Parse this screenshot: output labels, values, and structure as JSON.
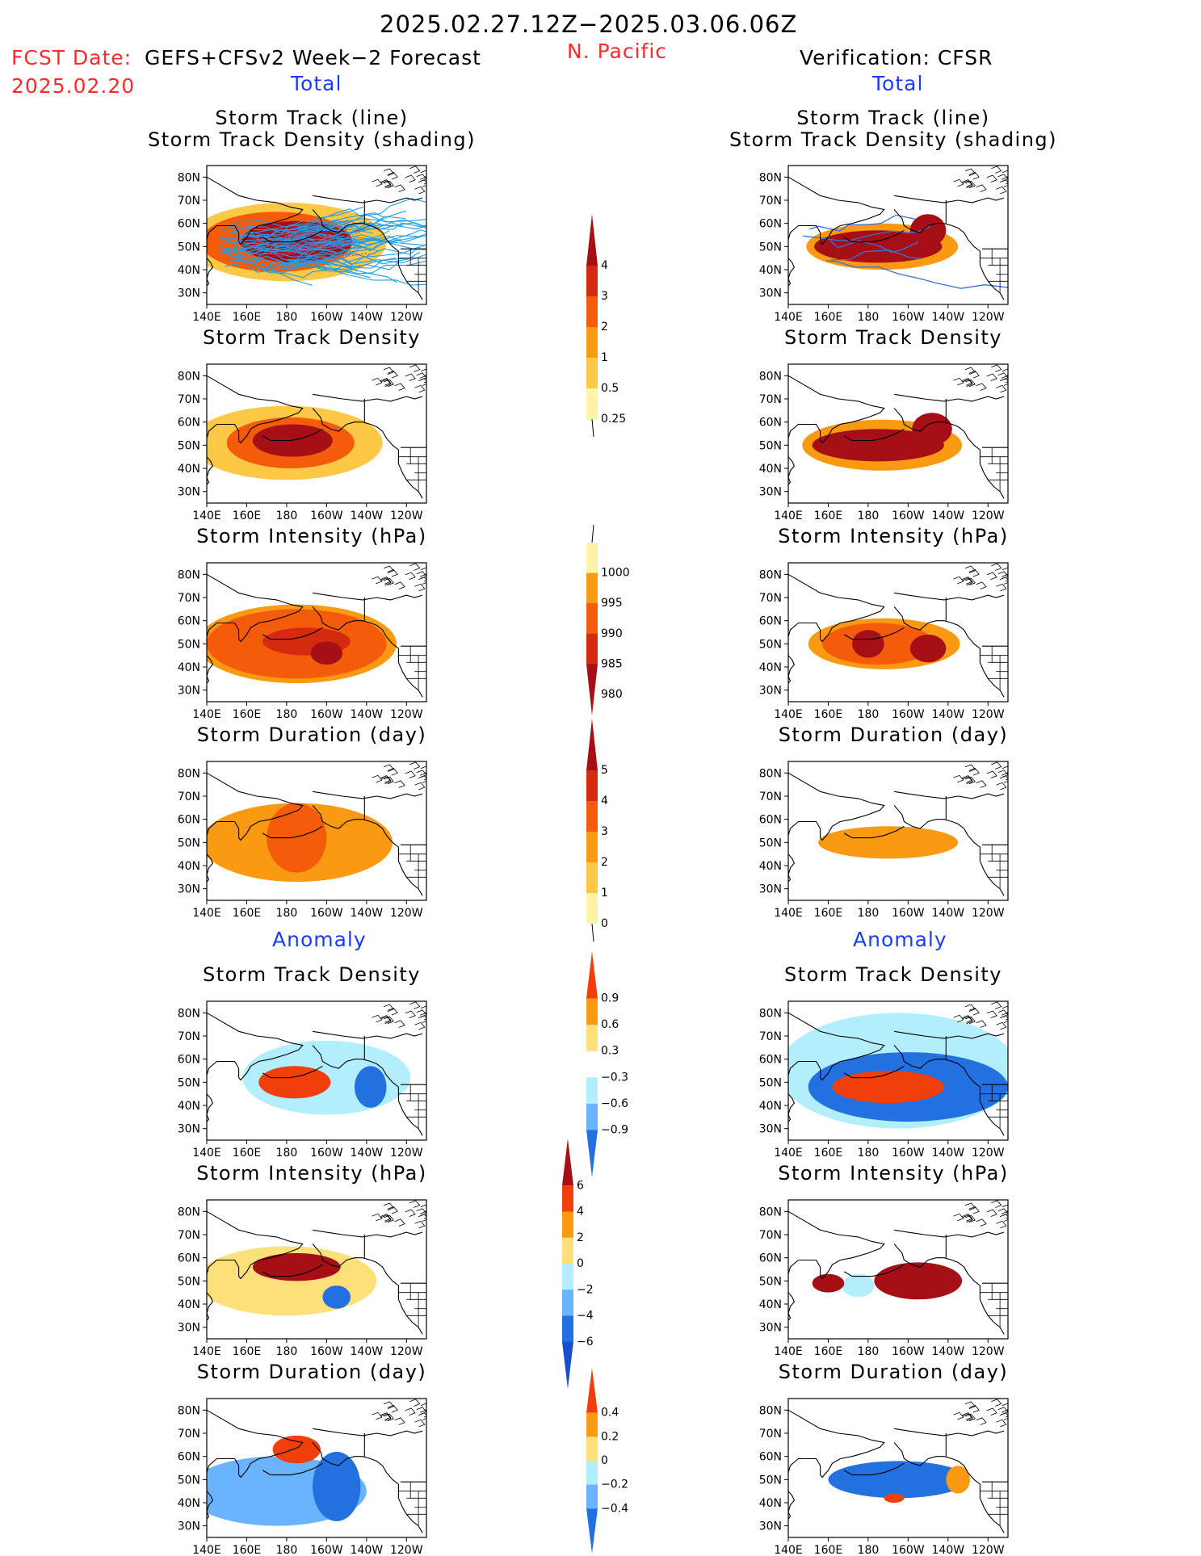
{
  "header": {
    "period": "2025.02.27.12Z−2025.03.06.06Z",
    "region": "N. Pacific",
    "fcst_prefix": "FCST Date:",
    "fcst_model": "GEFS+CFSv2 Week−2 Forecast",
    "fcst_date": "2025.02.20",
    "verification": "Verification: CFSR",
    "total_label": "Total",
    "anomaly_label": "Anomaly"
  },
  "axes": {
    "x_ticks": [
      "140E",
      "160E",
      "180",
      "160W",
      "140W",
      "120W"
    ],
    "y_ticks": [
      "80N",
      "70N",
      "60N",
      "50N",
      "40N",
      "30N"
    ],
    "lon_range": [
      140,
      250
    ],
    "lat_range": [
      25,
      85
    ]
  },
  "panel_titles": {
    "track_line_1": "Storm Track (line)",
    "track_line_2": "Storm Track Density (shading)",
    "density": "Storm Track Density",
    "intensity": "Storm Intensity (hPa)",
    "duration": "Storm Duration (day)"
  },
  "colorbars": {
    "density_total": {
      "labels": [
        "4",
        "3",
        "2",
        "1",
        "0.5",
        "0.25"
      ],
      "colors": [
        "#a50f15",
        "#d42a0f",
        "#f45b0a",
        "#fa9a12",
        "#fcc845",
        "#fff3a8"
      ],
      "open_bottom": true
    },
    "intensity_total": {
      "labels": [
        "1000",
        "995",
        "990",
        "985",
        "980"
      ],
      "colors": [
        "#fff3a8",
        "#fa9a12",
        "#f45b0a",
        "#d42a0f",
        "#a50f15"
      ],
      "open_top": true
    },
    "duration_total": {
      "labels": [
        "5",
        "4",
        "3",
        "2",
        "1",
        "0"
      ],
      "colors": [
        "#a50f15",
        "#d42a0f",
        "#f45b0a",
        "#fa9a12",
        "#fcc845",
        "#fff3a8"
      ],
      "open_bottom": true
    },
    "density_anom": {
      "labels": [
        "0.9",
        "0.6",
        "0.3",
        "−0.3",
        "−0.6",
        "−0.9"
      ],
      "colors": [
        "#f03f0a",
        "#fa9a12",
        "#fde07a",
        "#ffffff",
        "#b3eefc",
        "#6ab4ff",
        "#2370e0"
      ]
    },
    "intensity_anom": {
      "labels": [
        "6",
        "4",
        "2",
        "0",
        "−2",
        "−4",
        "−6"
      ],
      "colors": [
        "#a50f15",
        "#f03f0a",
        "#fa9a12",
        "#fde07a",
        "#b3eefc",
        "#6ab4ff",
        "#2370e0",
        "#1650c8"
      ]
    },
    "duration_anom": {
      "labels": [
        "0.4",
        "0.2",
        "0",
        "−0.2",
        "−0.4"
      ],
      "colors": [
        "#f03f0a",
        "#fa9a12",
        "#fde07a",
        "#b3eefc",
        "#6ab4ff",
        "#2370e0"
      ]
    }
  },
  "chart_data": [
    {
      "type": "heatmap",
      "panel": "forecast-track-total",
      "title": "Storm Track (line) Storm Track Density (shading)",
      "units": "density",
      "blobs": [
        {
          "lon": 185,
          "lat": 52,
          "rx": 28,
          "ry": 9,
          "value": 4
        },
        {
          "lon": 175,
          "lat": 52,
          "rx": 38,
          "ry": 13,
          "value": 2
        },
        {
          "lon": 180,
          "lat": 52,
          "rx": 50,
          "ry": 17,
          "value": 0.5
        }
      ],
      "tracks": "many"
    },
    {
      "type": "heatmap",
      "panel": "verification-track-total",
      "title": "Storm Track (line) Storm Track Density (shading)",
      "units": "density",
      "blobs": [
        {
          "lon": 185,
          "lat": 50,
          "rx": 32,
          "ry": 7,
          "value": 4
        },
        {
          "lon": 210,
          "lat": 57,
          "rx": 9,
          "ry": 7,
          "value": 4
        },
        {
          "lon": 187,
          "lat": 50,
          "rx": 38,
          "ry": 10,
          "value": 1
        }
      ],
      "tracks": "few"
    },
    {
      "type": "heatmap",
      "panel": "forecast-density-total",
      "title": "Storm Track Density",
      "units": "density",
      "blobs": [
        {
          "lon": 183,
          "lat": 52,
          "rx": 20,
          "ry": 7,
          "value": 4
        },
        {
          "lon": 182,
          "lat": 51,
          "rx": 32,
          "ry": 11,
          "value": 2
        },
        {
          "lon": 180,
          "lat": 51,
          "rx": 48,
          "ry": 16,
          "value": 0.5
        }
      ]
    },
    {
      "type": "heatmap",
      "panel": "verification-density-total",
      "title": "Storm Track Density",
      "units": "density",
      "blobs": [
        {
          "lon": 185,
          "lat": 50,
          "rx": 33,
          "ry": 7,
          "value": 4
        },
        {
          "lon": 212,
          "lat": 57,
          "rx": 10,
          "ry": 7,
          "value": 4
        },
        {
          "lon": 187,
          "lat": 50,
          "rx": 40,
          "ry": 11,
          "value": 1
        }
      ]
    },
    {
      "type": "heatmap",
      "panel": "forecast-intensity-total",
      "title": "Storm Intensity (hPa)",
      "units": "hPa",
      "blobs": [
        {
          "lon": 200,
          "lat": 46,
          "rx": 8,
          "ry": 5,
          "value": 980
        },
        {
          "lon": 190,
          "lat": 51,
          "rx": 22,
          "ry": 6,
          "value": 985
        },
        {
          "lon": 185,
          "lat": 50,
          "rx": 45,
          "ry": 15,
          "value": 990
        },
        {
          "lon": 185,
          "lat": 50,
          "rx": 50,
          "ry": 17,
          "value": 995
        }
      ]
    },
    {
      "type": "heatmap",
      "panel": "verification-intensity-total",
      "title": "Storm Intensity (hPa)",
      "units": "hPa",
      "blobs": [
        {
          "lon": 180,
          "lat": 50,
          "rx": 8,
          "ry": 6,
          "value": 980
        },
        {
          "lon": 210,
          "lat": 48,
          "rx": 9,
          "ry": 6,
          "value": 980
        },
        {
          "lon": 185,
          "lat": 50,
          "rx": 28,
          "ry": 9,
          "value": 990
        },
        {
          "lon": 188,
          "lat": 50,
          "rx": 38,
          "ry": 11,
          "value": 995
        }
      ]
    },
    {
      "type": "heatmap",
      "panel": "forecast-duration-total",
      "title": "Storm Duration (day)",
      "units": "day",
      "blobs": [
        {
          "lon": 185,
          "lat": 52,
          "rx": 15,
          "ry": 15,
          "value": 3
        },
        {
          "lon": 185,
          "lat": 50,
          "rx": 48,
          "ry": 17,
          "value": 2
        }
      ]
    },
    {
      "type": "heatmap",
      "panel": "verification-duration-total",
      "title": "Storm Duration (day)",
      "units": "day",
      "blobs": [
        {
          "lon": 190,
          "lat": 50,
          "rx": 35,
          "ry": 7,
          "value": 2
        }
      ]
    },
    {
      "type": "heatmap",
      "panel": "forecast-density-anom",
      "title": "Storm Track Density",
      "units": "anomaly",
      "blobs": [
        {
          "lon": 184,
          "lat": 50,
          "rx": 18,
          "ry": 7,
          "value": 0.9
        },
        {
          "lon": 222,
          "lat": 48,
          "rx": 8,
          "ry": 9,
          "value": -0.9
        },
        {
          "lon": 200,
          "lat": 52,
          "rx": 42,
          "ry": 16,
          "value": -0.3
        }
      ]
    },
    {
      "type": "heatmap",
      "panel": "verification-density-anom",
      "title": "Storm Track Density",
      "units": "anomaly",
      "blobs": [
        {
          "lon": 190,
          "lat": 48,
          "rx": 28,
          "ry": 7,
          "value": 0.9
        },
        {
          "lon": 200,
          "lat": 48,
          "rx": 50,
          "ry": 15,
          "value": -0.9
        },
        {
          "lon": 195,
          "lat": 55,
          "rx": 60,
          "ry": 25,
          "value": -0.3
        }
      ]
    },
    {
      "type": "heatmap",
      "panel": "forecast-intensity-anom",
      "title": "Storm Intensity (hPa)",
      "units": "hPa anomaly",
      "blobs": [
        {
          "lon": 185,
          "lat": 56,
          "rx": 22,
          "ry": 6,
          "value": 6
        },
        {
          "lon": 205,
          "lat": 43,
          "rx": 7,
          "ry": 5,
          "value": -6
        },
        {
          "lon": 180,
          "lat": 50,
          "rx": 45,
          "ry": 15,
          "value": 2
        }
      ]
    },
    {
      "type": "heatmap",
      "panel": "verification-intensity-anom",
      "title": "Storm Intensity (hPa)",
      "units": "hPa anomaly",
      "blobs": [
        {
          "lon": 205,
          "lat": 50,
          "rx": 22,
          "ry": 8,
          "value": 6
        },
        {
          "lon": 160,
          "lat": 49,
          "rx": 8,
          "ry": 4,
          "value": 6
        },
        {
          "lon": 175,
          "lat": 48,
          "rx": 8,
          "ry": 5,
          "value": -2
        }
      ]
    },
    {
      "type": "heatmap",
      "panel": "forecast-duration-anom",
      "title": "Storm Duration (day)",
      "units": "day anomaly",
      "blobs": [
        {
          "lon": 185,
          "lat": 63,
          "rx": 12,
          "ry": 6,
          "value": 0.4
        },
        {
          "lon": 205,
          "lat": 47,
          "rx": 12,
          "ry": 15,
          "value": -0.4
        },
        {
          "lon": 175,
          "lat": 45,
          "rx": 45,
          "ry": 15,
          "value": -0.2
        }
      ]
    },
    {
      "type": "heatmap",
      "panel": "verification-duration-anom",
      "title": "Storm Duration (day)",
      "units": "day anomaly",
      "blobs": [
        {
          "lon": 195,
          "lat": 50,
          "rx": 35,
          "ry": 8,
          "value": -0.4
        },
        {
          "lon": 193,
          "lat": 42,
          "rx": 5,
          "ry": 2,
          "value": 0.4
        },
        {
          "lon": 225,
          "lat": 50,
          "rx": 6,
          "ry": 6,
          "value": 0.2
        }
      ]
    }
  ]
}
